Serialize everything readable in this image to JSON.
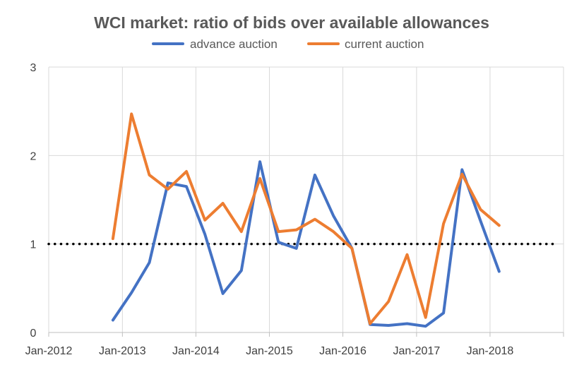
{
  "chart_data": {
    "type": "line",
    "title": "WCI market: ratio of bids over available allowances",
    "xlabel": "",
    "ylabel": "",
    "x_range": [
      "2012-01-01",
      "2019-01-01"
    ],
    "ylim": [
      0,
      3
    ],
    "y_ticks": [
      0,
      1,
      2,
      3
    ],
    "x_ticks": [
      "2012-01-01",
      "2013-01-01",
      "2014-01-01",
      "2015-01-01",
      "2016-01-01",
      "2017-01-01",
      "2018-01-01",
      "2019-01-01"
    ],
    "x_tick_labels": [
      "Jan-2012",
      "Jan-2013",
      "Jan-2014",
      "Jan-2015",
      "Jan-2016",
      "Jan-2017",
      "Jan-2018",
      ""
    ],
    "grid": true,
    "legend_position": "top-center",
    "reference_line": {
      "y": 1,
      "style": "dotted",
      "color": "#000000"
    },
    "series": [
      {
        "name": "advance auction",
        "color": "#4472C4",
        "points": [
          [
            "2012-11-15",
            0.14
          ],
          [
            "2013-02-15",
            0.45
          ],
          [
            "2013-05-15",
            0.79
          ],
          [
            "2013-08-15",
            1.69
          ],
          [
            "2013-11-15",
            1.65
          ],
          [
            "2014-02-15",
            1.11
          ],
          [
            "2014-05-15",
            0.44
          ],
          [
            "2014-08-15",
            0.7
          ],
          [
            "2014-11-15",
            1.93
          ],
          [
            "2015-02-15",
            1.02
          ],
          [
            "2015-05-15",
            0.95
          ],
          [
            "2015-08-15",
            1.78
          ],
          [
            "2015-11-15",
            1.32
          ],
          [
            "2016-02-15",
            0.95
          ],
          [
            "2016-05-15",
            0.09
          ],
          [
            "2016-08-15",
            0.08
          ],
          [
            "2016-11-15",
            0.1
          ],
          [
            "2017-02-15",
            0.07
          ],
          [
            "2017-05-15",
            0.22
          ],
          [
            "2017-08-15",
            1.84
          ],
          [
            "2017-11-15",
            1.26
          ],
          [
            "2018-02-15",
            0.69
          ]
        ]
      },
      {
        "name": "current auction",
        "color": "#ED7D31",
        "points": [
          [
            "2012-11-15",
            1.06
          ],
          [
            "2013-02-15",
            2.47
          ],
          [
            "2013-05-15",
            1.78
          ],
          [
            "2013-08-15",
            1.62
          ],
          [
            "2013-11-15",
            1.82
          ],
          [
            "2014-02-15",
            1.27
          ],
          [
            "2014-05-15",
            1.46
          ],
          [
            "2014-08-15",
            1.14
          ],
          [
            "2014-11-15",
            1.74
          ],
          [
            "2015-02-15",
            1.14
          ],
          [
            "2015-05-15",
            1.16
          ],
          [
            "2015-08-15",
            1.28
          ],
          [
            "2015-11-15",
            1.14
          ],
          [
            "2016-02-15",
            0.95
          ],
          [
            "2016-05-15",
            0.1
          ],
          [
            "2016-08-15",
            0.35
          ],
          [
            "2016-11-15",
            0.88
          ],
          [
            "2017-02-15",
            0.17
          ],
          [
            "2017-05-15",
            1.23
          ],
          [
            "2017-08-15",
            1.79
          ],
          [
            "2017-11-15",
            1.39
          ],
          [
            "2018-02-15",
            1.21
          ]
        ]
      }
    ]
  }
}
